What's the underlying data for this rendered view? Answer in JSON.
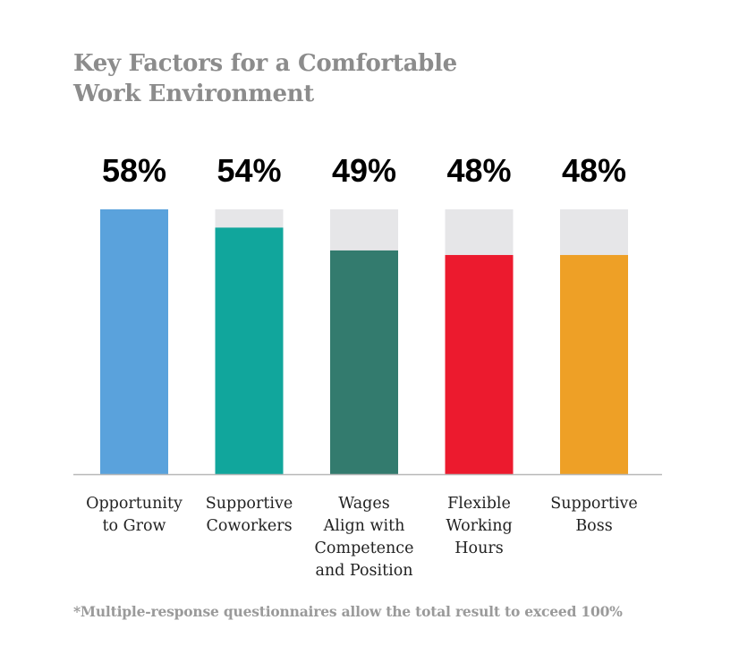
{
  "title_lines": [
    "Key Factors for a Comfortable",
    "Work Environment"
  ],
  "footnote": "*Multiple-response questionnaires allow the total result to exceed 100%",
  "colors": {
    "track": "#e6e6e8",
    "axis": "#b8b8b8"
  },
  "chart_data": {
    "type": "bar",
    "title": "Key Factors for a Comfortable Work Environment",
    "ylim": [
      0,
      58
    ],
    "grid": false,
    "value_format": "percent",
    "categories": [
      {
        "label_lines": [
          "Opportunity",
          "to Grow"
        ],
        "name": "Opportunity to Grow"
      },
      {
        "label_lines": [
          "Supportive",
          "Coworkers"
        ],
        "name": "Supportive Coworkers"
      },
      {
        "label_lines": [
          "Wages",
          "Align with",
          "Competence",
          "and Position"
        ],
        "name": "Wages Align with Competence and Position"
      },
      {
        "label_lines": [
          "Flexible",
          "Working",
          "Hours"
        ],
        "name": "Flexible Working Hours"
      },
      {
        "label_lines": [
          "Supportive",
          "Boss"
        ],
        "name": "Supportive Boss"
      }
    ],
    "values": [
      58,
      54,
      49,
      48,
      48
    ],
    "value_labels": [
      "58%",
      "54%",
      "49%",
      "48%",
      "48%"
    ],
    "bar_colors": [
      "#5aa2dc",
      "#11a69c",
      "#337b6e",
      "#ec1a2e",
      "#eea026"
    ]
  }
}
